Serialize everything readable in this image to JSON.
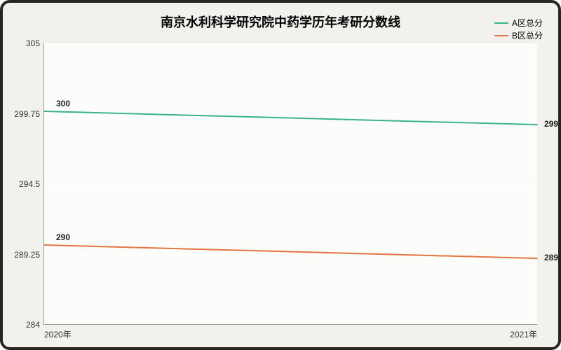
{
  "chart": {
    "type": "line",
    "title": "南京水利科学研究院中药学历年考研分数线",
    "title_fontsize": 18,
    "background_color": "#f2f1ee",
    "border_color": "#28271f",
    "plot_bg": "#fcfcfb",
    "grid_color": "#ffffff",
    "x": {
      "categories": [
        "2020年",
        "2021年"
      ]
    },
    "y": {
      "min": 284,
      "max": 305,
      "ticks": [
        284,
        289.25,
        294.5,
        299.75,
        305
      ]
    },
    "series": [
      {
        "name": "A区总分",
        "color": "#3ab28d",
        "values": [
          300,
          299
        ]
      },
      {
        "name": "B区总分",
        "color": "#e67440",
        "values": [
          290,
          289
        ]
      }
    ],
    "label_fontsize": 12
  }
}
